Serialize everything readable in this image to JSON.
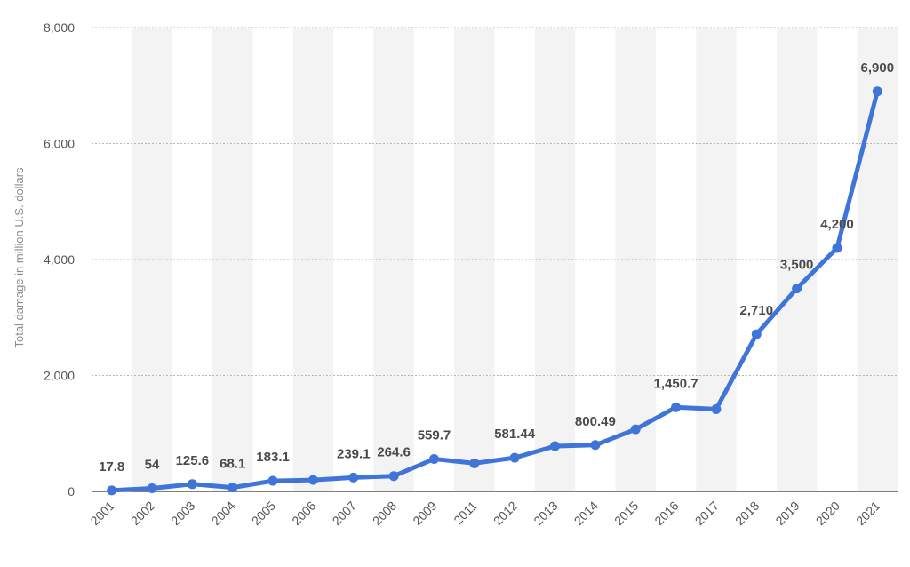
{
  "chart_data": {
    "type": "line",
    "ylabel": "Total damage in million U.S. dollars",
    "xlabel": "",
    "ylim": [
      0,
      8000
    ],
    "yticks": [
      0,
      2000,
      4000,
      6000,
      8000
    ],
    "ytick_labels": [
      "0",
      "2,000",
      "4,000",
      "6,000",
      "8,000"
    ],
    "grid": true,
    "line_color": "#3f74d9",
    "band_color": "#f3f3f3",
    "categories": [
      "2001",
      "2002",
      "2003",
      "2004",
      "2005",
      "2006",
      "2007",
      "2008",
      "2009",
      "2011",
      "2012",
      "2013",
      "2014",
      "2015",
      "2016",
      "2017",
      "2018",
      "2019",
      "2020",
      "2021"
    ],
    "values": [
      17.8,
      54,
      125.6,
      68.1,
      183.1,
      197.7,
      239.1,
      264.6,
      559.7,
      485.3,
      581.44,
      781.8,
      800.49,
      1070.7,
      1450.7,
      1418.7,
      2710,
      3500,
      4200,
      6900
    ],
    "data_labels": [
      "17.8",
      "54",
      "125.6",
      "68.1",
      "183.1",
      "",
      "239.1",
      "264.6",
      "559.7",
      "",
      "581.44",
      "",
      "800.49",
      "",
      "1,450.7",
      "",
      "2,710",
      "3,500",
      "4,200",
      "6,900"
    ]
  }
}
